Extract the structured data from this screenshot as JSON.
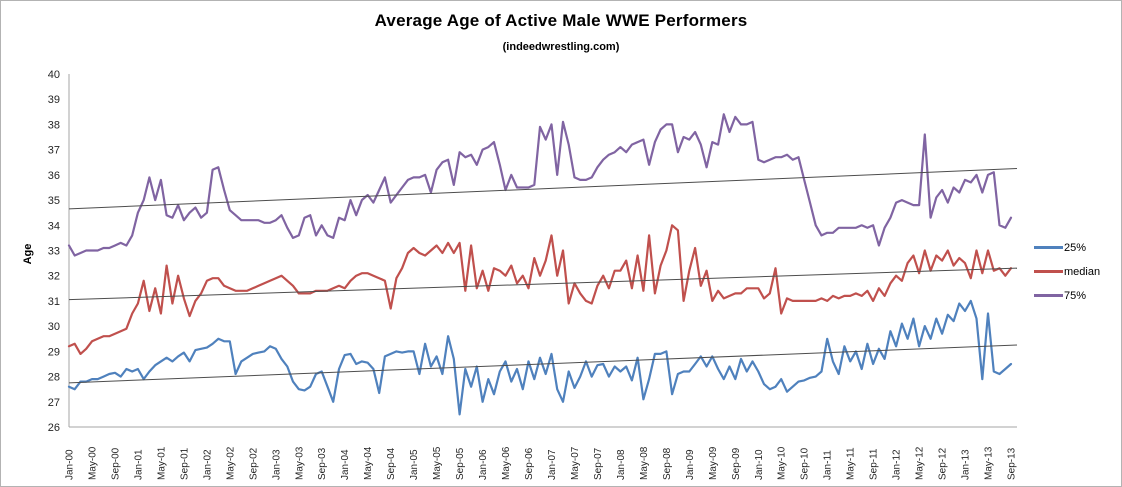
{
  "chart_data": {
    "type": "line",
    "title": "Average Age of Active Male WWE Performers",
    "subtitle": "(indeedwrestling.com)",
    "xlabel": "",
    "ylabel": "Age",
    "ylim": [
      26,
      40
    ],
    "y_ticks": [
      26,
      27,
      28,
      29,
      30,
      31,
      32,
      33,
      34,
      35,
      36,
      37,
      38,
      39,
      40
    ],
    "grid": false,
    "legend_position": "right",
    "x_tick_every_n_points": 4,
    "x_tick_labels": [
      "Jan-00",
      "May-00",
      "Sep-00",
      "Jan-01",
      "May-01",
      "Sep-01",
      "Jan-02",
      "May-02",
      "Sep-02",
      "Jan-03",
      "May-03",
      "Sep-03",
      "Jan-04",
      "May-04",
      "Sep-04",
      "Jan-05",
      "May-05",
      "Sep-05",
      "Jan-06",
      "May-06",
      "Sep-06",
      "Jan-07",
      "May-07",
      "Sep-07",
      "Jan-08",
      "May-08",
      "Sep-08",
      "Jan-09",
      "May-09",
      "Sep-09",
      "Jan-10",
      "May-10",
      "Sep-10",
      "Jan-11",
      "May-11",
      "Sep-11",
      "Jan-12",
      "May-12",
      "Sep-12",
      "Jan-13",
      "May-13",
      "Sep-13"
    ],
    "series": [
      {
        "name": "25%",
        "color": "#4F81BD",
        "values": [
          27.6,
          27.5,
          27.8,
          27.8,
          27.9,
          27.9,
          28.0,
          28.1,
          28.15,
          28.0,
          28.3,
          28.2,
          28.3,
          27.9,
          28.2,
          28.45,
          28.6,
          28.75,
          28.6,
          28.8,
          28.95,
          28.6,
          29.05,
          29.1,
          29.15,
          29.3,
          29.5,
          29.4,
          29.4,
          28.1,
          28.6,
          28.75,
          28.9,
          28.95,
          29.0,
          29.2,
          29.1,
          28.7,
          28.4,
          27.8,
          27.5,
          27.45,
          27.6,
          28.1,
          28.2,
          27.6,
          27.0,
          28.3,
          28.85,
          28.9,
          28.5,
          28.6,
          28.55,
          28.3,
          27.35,
          28.8,
          28.9,
          29.0,
          28.95,
          29.0,
          29.0,
          28.1,
          29.3,
          28.4,
          28.8,
          28.1,
          29.6,
          28.7,
          26.5,
          28.3,
          27.6,
          28.4,
          27.0,
          27.9,
          27.3,
          28.2,
          28.6,
          27.8,
          28.3,
          27.5,
          28.6,
          27.9,
          28.75,
          28.1,
          28.9,
          27.5,
          27.0,
          28.2,
          27.55,
          28.0,
          28.6,
          28.0,
          28.45,
          28.5,
          28.0,
          28.4,
          28.2,
          28.4,
          27.85,
          28.75,
          27.1,
          27.9,
          28.9,
          28.9,
          29.0,
          27.3,
          28.1,
          28.2,
          28.2,
          28.5,
          28.8,
          28.4,
          28.8,
          28.3,
          27.9,
          28.4,
          27.9,
          28.7,
          28.2,
          28.6,
          28.2,
          27.7,
          27.5,
          27.6,
          27.9,
          27.4,
          27.6,
          27.8,
          27.85,
          27.95,
          28.0,
          28.2,
          29.5,
          28.6,
          28.1,
          29.2,
          28.6,
          29.0,
          28.3,
          29.3,
          28.5,
          29.1,
          28.7,
          29.8,
          29.2,
          30.1,
          29.5,
          30.3,
          29.2,
          30.0,
          29.5,
          30.3,
          29.7,
          30.45,
          30.2,
          30.9,
          30.6,
          31.0,
          30.3,
          27.9,
          30.5,
          28.2,
          28.1,
          28.3,
          28.5
        ]
      },
      {
        "name": "median",
        "color": "#C0504D",
        "values": [
          29.2,
          29.3,
          28.9,
          29.1,
          29.4,
          29.5,
          29.6,
          29.6,
          29.7,
          29.8,
          29.9,
          30.5,
          30.9,
          31.8,
          30.6,
          31.5,
          30.5,
          32.4,
          30.9,
          32.0,
          31.1,
          30.4,
          31.0,
          31.3,
          31.8,
          31.9,
          31.9,
          31.6,
          31.5,
          31.4,
          31.4,
          31.4,
          31.5,
          31.6,
          31.7,
          31.8,
          31.9,
          32.0,
          31.8,
          31.6,
          31.3,
          31.3,
          31.3,
          31.4,
          31.4,
          31.4,
          31.5,
          31.6,
          31.5,
          31.8,
          32.0,
          32.1,
          32.1,
          32.0,
          31.9,
          31.8,
          30.7,
          31.9,
          32.3,
          32.9,
          33.1,
          32.9,
          32.8,
          33.0,
          33.2,
          32.9,
          33.3,
          32.9,
          33.3,
          31.4,
          33.2,
          31.5,
          32.2,
          31.4,
          32.3,
          32.2,
          32.0,
          32.4,
          31.7,
          32.0,
          31.5,
          32.7,
          32.0,
          32.6,
          33.6,
          32.0,
          33.0,
          30.9,
          31.7,
          31.3,
          31.0,
          30.9,
          31.6,
          32.0,
          31.5,
          32.2,
          32.2,
          32.6,
          31.5,
          32.8,
          31.4,
          33.6,
          31.3,
          32.4,
          33.0,
          34.0,
          33.8,
          31.0,
          32.2,
          33.1,
          31.6,
          32.2,
          31.0,
          31.4,
          31.1,
          31.2,
          31.3,
          31.3,
          31.5,
          31.5,
          31.5,
          31.1,
          31.3,
          32.3,
          30.5,
          31.1,
          31.0,
          31.0,
          31.0,
          31.0,
          31.0,
          31.1,
          31.0,
          31.2,
          31.1,
          31.2,
          31.2,
          31.3,
          31.2,
          31.4,
          31.0,
          31.5,
          31.2,
          31.7,
          32.0,
          31.8,
          32.5,
          32.8,
          32.1,
          33.0,
          32.2,
          32.8,
          32.6,
          33.0,
          32.4,
          32.7,
          32.5,
          31.9,
          33.0,
          32.1,
          33.0,
          32.2,
          32.3,
          32.0,
          32.3
        ]
      },
      {
        "name": "75%",
        "color": "#8064A2",
        "values": [
          33.2,
          32.8,
          32.9,
          33.0,
          33.0,
          33.0,
          33.1,
          33.1,
          33.2,
          33.3,
          33.2,
          33.6,
          34.5,
          35.0,
          35.9,
          35.0,
          35.8,
          34.4,
          34.3,
          34.8,
          34.2,
          34.5,
          34.7,
          34.3,
          34.5,
          36.2,
          36.3,
          35.4,
          34.6,
          34.4,
          34.2,
          34.2,
          34.2,
          34.2,
          34.1,
          34.1,
          34.2,
          34.4,
          33.9,
          33.5,
          33.6,
          34.3,
          34.4,
          33.6,
          34.0,
          33.6,
          33.5,
          34.3,
          34.2,
          35.0,
          34.4,
          35.0,
          35.2,
          34.9,
          35.4,
          35.9,
          34.9,
          35.2,
          35.5,
          35.8,
          35.9,
          35.9,
          36.0,
          35.3,
          36.2,
          36.5,
          36.6,
          35.6,
          36.9,
          36.7,
          36.8,
          36.4,
          37.0,
          37.1,
          37.3,
          36.4,
          35.4,
          36.0,
          35.5,
          35.5,
          35.5,
          35.6,
          37.9,
          37.4,
          38.0,
          36.0,
          38.1,
          37.2,
          35.9,
          35.8,
          35.8,
          35.9,
          36.3,
          36.6,
          36.8,
          36.9,
          37.1,
          36.9,
          37.2,
          37.3,
          37.4,
          36.4,
          37.3,
          37.8,
          38.0,
          38.0,
          36.9,
          37.5,
          37.4,
          37.7,
          37.2,
          36.3,
          37.3,
          37.2,
          38.4,
          37.7,
          38.3,
          38.0,
          38.0,
          38.1,
          36.6,
          36.5,
          36.6,
          36.7,
          36.7,
          36.8,
          36.6,
          36.7,
          35.8,
          34.9,
          34.0,
          33.6,
          33.7,
          33.7,
          33.9,
          33.9,
          33.9,
          33.9,
          34.0,
          33.9,
          34.0,
          33.2,
          33.9,
          34.3,
          34.9,
          35.0,
          34.9,
          34.8,
          34.8,
          37.6,
          34.3,
          35.1,
          35.4,
          34.9,
          35.5,
          35.3,
          35.8,
          35.7,
          36.0,
          35.3,
          36.0,
          36.1,
          34.0,
          33.9,
          34.3
        ]
      }
    ],
    "trend_lines": [
      {
        "series": "25%",
        "start_value": 27.75,
        "end_value": 29.25,
        "color": "#4d4d4d"
      },
      {
        "series": "median",
        "start_value": 31.05,
        "end_value": 32.3,
        "color": "#4d4d4d"
      },
      {
        "series": "75%",
        "start_value": 34.65,
        "end_value": 36.25,
        "color": "#4d4d4d"
      }
    ],
    "style": {
      "axis_color": "#a6a6a6",
      "tick_text_color": "#262626",
      "series_stroke_width": 2.2,
      "trend_stroke_width": 1
    }
  }
}
